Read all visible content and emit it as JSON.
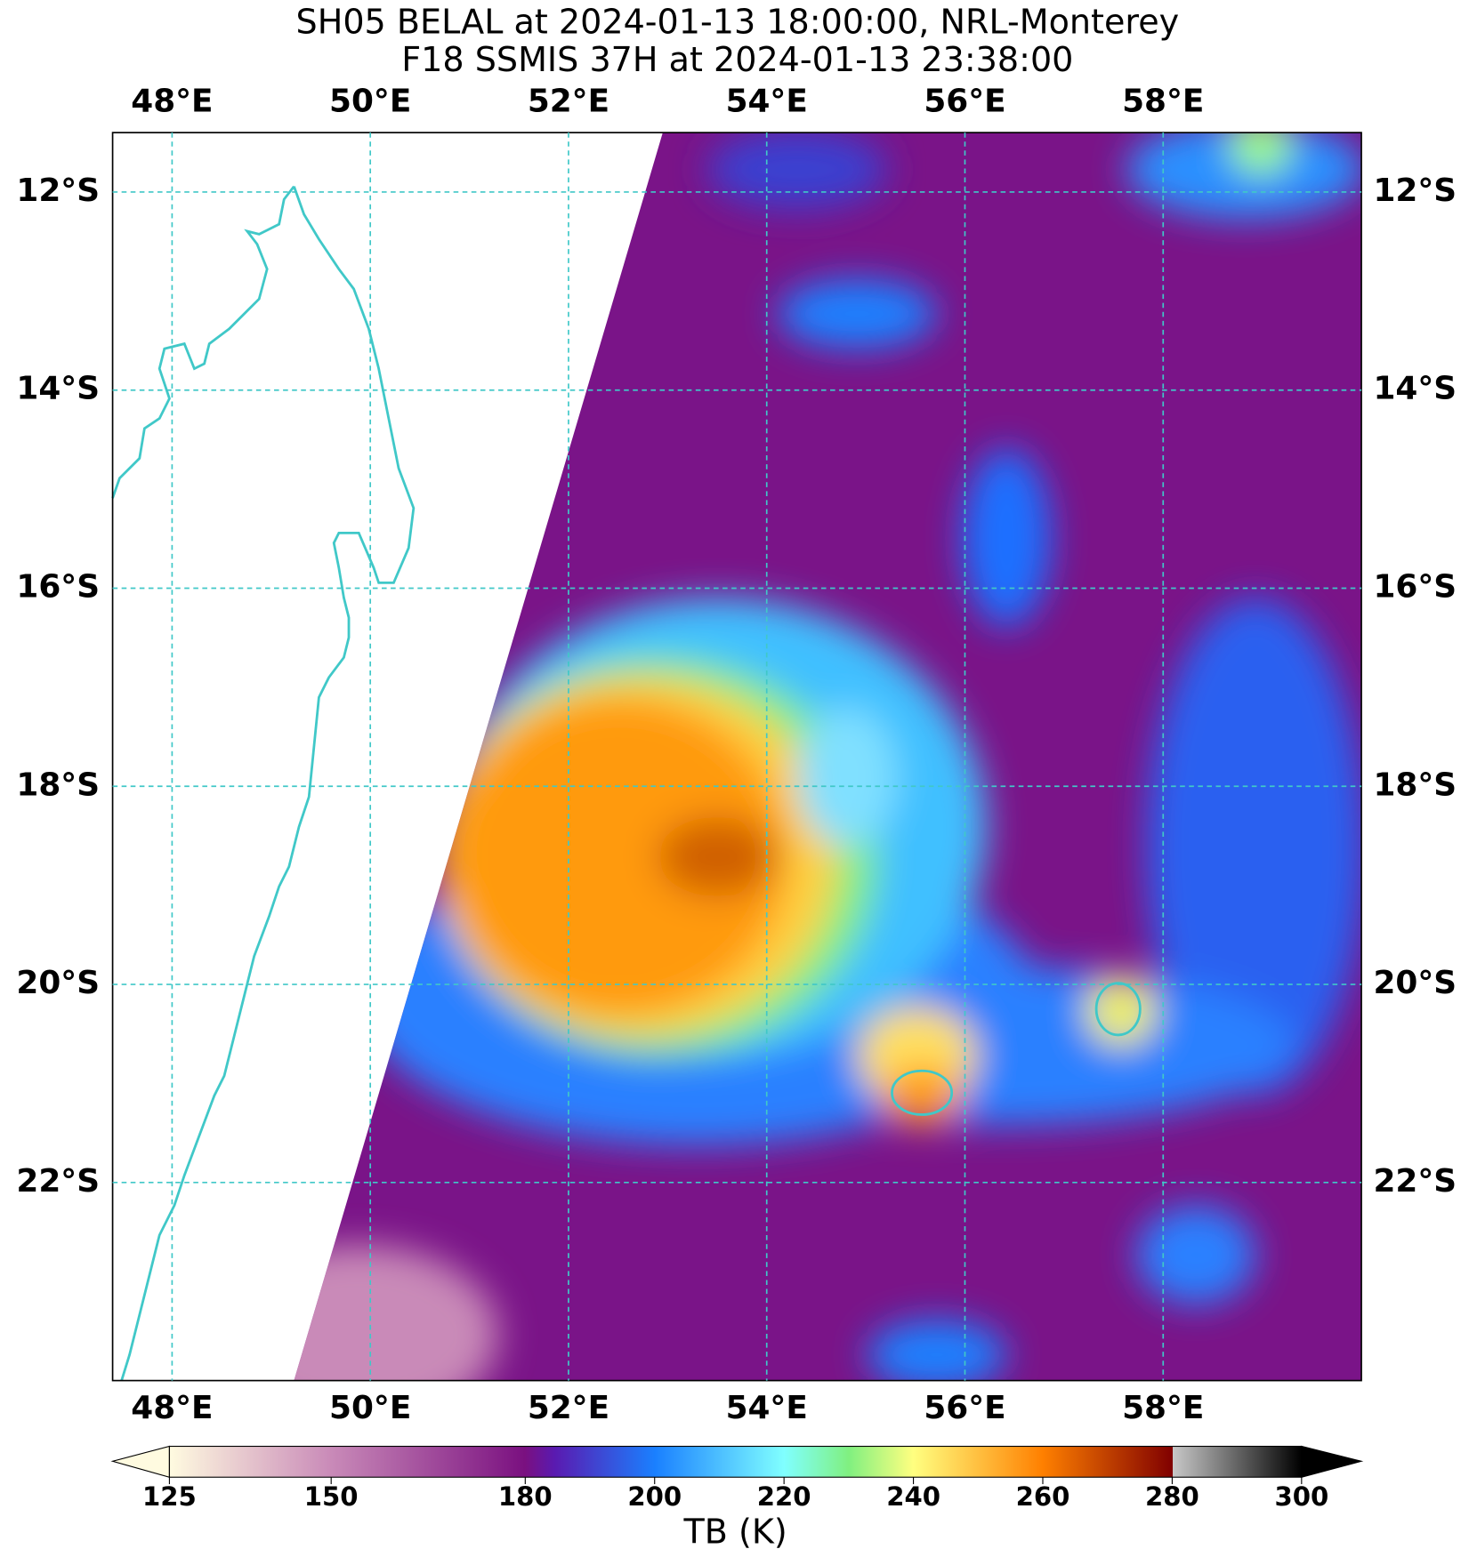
{
  "chart_data": {
    "type": "map",
    "title": "SH05 BELAL at 2024-01-13 18:00:00, NRL-Monterey",
    "subtitle": "F18 SSMIS 37H at 2024-01-13 23:38:00",
    "xlim": [
      47.4,
      60
    ],
    "ylim": [
      -24,
      -11.4
    ],
    "xticks": [
      {
        "value": 48,
        "label": "48°E"
      },
      {
        "value": 50,
        "label": "50°E"
      },
      {
        "value": 52,
        "label": "52°E"
      },
      {
        "value": 54,
        "label": "54°E"
      },
      {
        "value": 56,
        "label": "56°E"
      },
      {
        "value": 58,
        "label": "58°E"
      }
    ],
    "yticks": [
      {
        "value": -12,
        "label": "12°S"
      },
      {
        "value": -14,
        "label": "14°S"
      },
      {
        "value": -16,
        "label": "16°S"
      },
      {
        "value": -18,
        "label": "18°S"
      },
      {
        "value": -20,
        "label": "20°S"
      },
      {
        "value": -22,
        "label": "22°S"
      }
    ],
    "grid": true,
    "colorbar": {
      "label": "TB (K)",
      "clim": [
        125,
        300
      ],
      "ticks": [
        125,
        150,
        180,
        200,
        220,
        240,
        260,
        280,
        300
      ]
    }
  }
}
